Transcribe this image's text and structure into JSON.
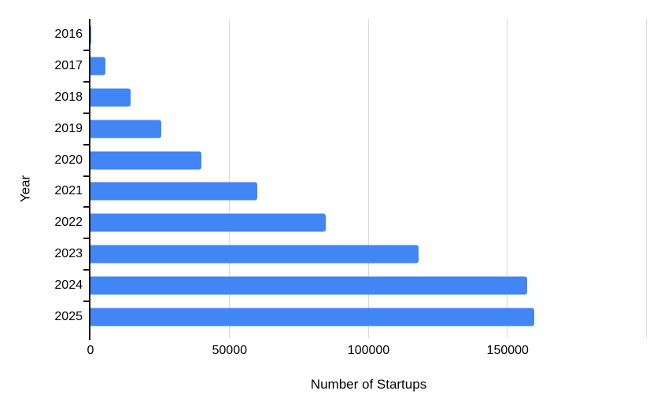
{
  "chart_data": {
    "type": "bar",
    "orientation": "horizontal",
    "title": "",
    "xlabel": "Number of Startups",
    "ylabel": "Year",
    "categories": [
      "2016",
      "2017",
      "2018",
      "2019",
      "2020",
      "2021",
      "2022",
      "2023",
      "2024",
      "2025"
    ],
    "values": [
      400,
      5500,
      14500,
      25500,
      40000,
      60000,
      84500,
      118000,
      157000,
      159500
    ],
    "xlim": [
      0,
      200000
    ],
    "xtick_values": [
      0,
      50000,
      100000,
      150000
    ],
    "xtick_labels": [
      "0",
      "50000",
      "100000",
      "150000"
    ],
    "gridline_values": [
      50000,
      100000,
      150000,
      200000
    ],
    "grid": true,
    "legend": "none",
    "colors": {
      "bar": "#4285F4",
      "gridline": "#d9d9d9",
      "axis": "#141414",
      "text": "#000000"
    }
  }
}
